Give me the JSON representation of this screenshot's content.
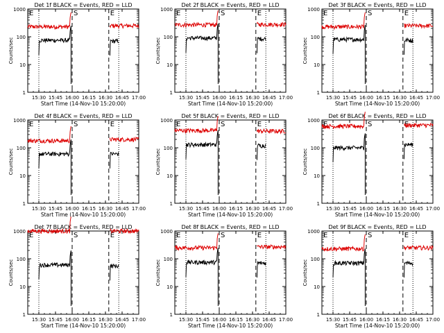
{
  "page": {
    "background": "#ffffff",
    "colors": {
      "events": "#000000",
      "lld": "#dd0000",
      "axes": "#000000"
    }
  },
  "chart_data": [
    {
      "type": "line",
      "title": "Det 1f BLACK = Events, RED = LLD",
      "xlabel": "Start Time (14-Nov-10 15:20:00)",
      "ylabel": "Counts/sec",
      "x_ticks": [
        "15:30",
        "15:45",
        "16:00",
        "16:15",
        "16:30",
        "16:45",
        "17:00"
      ],
      "y_ticks": [
        "1",
        "10",
        "100",
        "1000"
      ],
      "y_scale": "log",
      "ylim": [
        1,
        1000
      ],
      "xlim_minutes": [
        0,
        100
      ],
      "markers": [
        {
          "label": "E",
          "minute": 0,
          "style": "dotted"
        },
        {
          "label": "S",
          "minute": 40,
          "style": "dashed"
        },
        {
          "label": "E",
          "minute": 73,
          "style": "dashed"
        },
        {
          "minute": 10,
          "style": "dotted"
        },
        {
          "minute": 82,
          "style": "dotted"
        }
      ],
      "series": [
        {
          "color": "#dd0000",
          "segments": [
            {
              "start": 0,
              "end": 39,
              "level": 230
            },
            {
              "start": 74,
              "end": 100,
              "level": 250
            }
          ]
        },
        {
          "color": "#000000",
          "segments": [
            {
              "start": 10,
              "end": 39,
              "level": 75
            },
            {
              "start": 74,
              "end": 82,
              "level": 70
            }
          ]
        }
      ]
    },
    {
      "type": "line",
      "title": "Det 2f BLACK = Events, RED = LLD",
      "xlabel": "Start Time (14-Nov-10 15:20:00)",
      "ylabel": "Counts/sec",
      "x_ticks": [
        "15:30",
        "15:45",
        "16:00",
        "16:15",
        "16:30",
        "16:45",
        "17:00"
      ],
      "y_ticks": [
        "1",
        "10",
        "100",
        "1000"
      ],
      "y_scale": "log",
      "ylim": [
        1,
        1000
      ],
      "xlim_minutes": [
        0,
        100
      ],
      "markers": [
        {
          "label": "E",
          "minute": 0,
          "style": "dotted"
        },
        {
          "label": "S",
          "minute": 40,
          "style": "dashed"
        },
        {
          "label": "E",
          "minute": 73,
          "style": "dashed"
        },
        {
          "minute": 10,
          "style": "dotted"
        },
        {
          "minute": 82,
          "style": "dotted"
        }
      ],
      "series": [
        {
          "color": "#dd0000",
          "segments": [
            {
              "start": 0,
              "end": 39,
              "level": 270
            },
            {
              "start": 74,
              "end": 100,
              "level": 280
            }
          ]
        },
        {
          "color": "#000000",
          "segments": [
            {
              "start": 10,
              "end": 39,
              "level": 90
            },
            {
              "start": 74,
              "end": 82,
              "level": 85
            }
          ]
        }
      ]
    },
    {
      "type": "line",
      "title": "Det 3f BLACK = Events, RED = LLD",
      "xlabel": "Start Time (14-Nov-10 15:20:00)",
      "ylabel": "Counts/sec",
      "x_ticks": [
        "15:30",
        "15:45",
        "16:00",
        "16:15",
        "16:30",
        "16:45",
        "17:00"
      ],
      "y_ticks": [
        "1",
        "10",
        "100",
        "1000"
      ],
      "y_scale": "log",
      "ylim": [
        1,
        1000
      ],
      "xlim_minutes": [
        0,
        100
      ],
      "markers": [
        {
          "label": "E",
          "minute": 0,
          "style": "dotted"
        },
        {
          "label": "S",
          "minute": 40,
          "style": "dashed"
        },
        {
          "label": "E",
          "minute": 73,
          "style": "dashed"
        },
        {
          "minute": 10,
          "style": "dotted"
        },
        {
          "minute": 82,
          "style": "dotted"
        }
      ],
      "series": [
        {
          "color": "#dd0000",
          "segments": [
            {
              "start": 0,
              "end": 39,
              "level": 230
            },
            {
              "start": 74,
              "end": 100,
              "level": 250
            }
          ]
        },
        {
          "color": "#000000",
          "segments": [
            {
              "start": 10,
              "end": 39,
              "level": 80
            },
            {
              "start": 74,
              "end": 82,
              "level": 75
            }
          ]
        }
      ]
    },
    {
      "type": "line",
      "title": "Det 4f BLACK = Events, RED = LLD",
      "xlabel": "Start Time (14-Nov-10 15:20:00)",
      "ylabel": "Counts/sec",
      "x_ticks": [
        "15:30",
        "15:45",
        "16:00",
        "16:15",
        "16:30",
        "16:45",
        "17:00"
      ],
      "y_ticks": [
        "1",
        "10",
        "100",
        "1000"
      ],
      "y_scale": "log",
      "ylim": [
        1,
        1000
      ],
      "xlim_minutes": [
        0,
        100
      ],
      "markers": [
        {
          "label": "E",
          "minute": 0,
          "style": "dotted"
        },
        {
          "label": "S",
          "minute": 40,
          "style": "dashed"
        },
        {
          "label": "E",
          "minute": 73,
          "style": "dashed"
        },
        {
          "minute": 10,
          "style": "dotted"
        },
        {
          "minute": 82,
          "style": "dotted"
        }
      ],
      "series": [
        {
          "color": "#dd0000",
          "segments": [
            {
              "start": 0,
              "end": 39,
              "level": 180
            },
            {
              "start": 74,
              "end": 100,
              "level": 200
            }
          ]
        },
        {
          "color": "#000000",
          "segments": [
            {
              "start": 10,
              "end": 39,
              "level": 60
            },
            {
              "start": 74,
              "end": 82,
              "level": 60
            }
          ]
        }
      ]
    },
    {
      "type": "line",
      "title": "Det 5f BLACK = Events, RED = LLD",
      "xlabel": "Start Time (14-Nov-10 15:20:00)",
      "ylabel": "Counts/sec",
      "x_ticks": [
        "15:30",
        "15:45",
        "16:00",
        "16:15",
        "16:30",
        "16:45",
        "17:00"
      ],
      "y_ticks": [
        "1",
        "10",
        "100",
        "1000"
      ],
      "y_scale": "log",
      "ylim": [
        1,
        1000
      ],
      "xlim_minutes": [
        0,
        100
      ],
      "markers": [
        {
          "label": "E",
          "minute": 0,
          "style": "dotted"
        },
        {
          "label": "S",
          "minute": 40,
          "style": "dashed"
        },
        {
          "label": "E",
          "minute": 73,
          "style": "dashed"
        },
        {
          "minute": 10,
          "style": "dotted"
        },
        {
          "minute": 82,
          "style": "dotted"
        }
      ],
      "series": [
        {
          "color": "#dd0000",
          "segments": [
            {
              "start": 0,
              "end": 39,
              "level": 420
            },
            {
              "start": 74,
              "end": 100,
              "level": 400
            }
          ]
        },
        {
          "color": "#000000",
          "segments": [
            {
              "start": 10,
              "end": 39,
              "level": 130
            },
            {
              "start": 74,
              "end": 82,
              "level": 120
            }
          ]
        }
      ]
    },
    {
      "type": "line",
      "title": "Det 6f BLACK = Events, RED = LLD",
      "xlabel": "Start Time (14-Nov-10 15:20:00)",
      "ylabel": "Counts/sec",
      "x_ticks": [
        "15:30",
        "15:45",
        "16:00",
        "16:15",
        "16:30",
        "16:45",
        "17:00"
      ],
      "y_ticks": [
        "1",
        "10",
        "100",
        "1000"
      ],
      "y_scale": "log",
      "ylim": [
        1,
        1000
      ],
      "xlim_minutes": [
        0,
        100
      ],
      "markers": [
        {
          "label": "E",
          "minute": 0,
          "style": "dotted"
        },
        {
          "label": "S",
          "minute": 40,
          "style": "dashed"
        },
        {
          "label": "E",
          "minute": 73,
          "style": "dashed"
        },
        {
          "minute": 10,
          "style": "dotted"
        },
        {
          "minute": 82,
          "style": "dotted"
        }
      ],
      "series": [
        {
          "color": "#dd0000",
          "segments": [
            {
              "start": 0,
              "end": 39,
              "level": 600
            },
            {
              "start": 74,
              "end": 100,
              "level": 650
            }
          ]
        },
        {
          "color": "#000000",
          "segments": [
            {
              "start": 10,
              "end": 39,
              "level": 100
            },
            {
              "start": 74,
              "end": 82,
              "level": 130
            }
          ]
        }
      ]
    },
    {
      "type": "line",
      "title": "Det 7f BLACK = Events, RED = LLD",
      "xlabel": "Start Time (14-Nov-10 15:20:00)",
      "ylabel": "Counts/sec",
      "x_ticks": [
        "15:30",
        "15:45",
        "16:00",
        "16:15",
        "16:30",
        "16:45",
        "17:00"
      ],
      "y_ticks": [
        "1",
        "10",
        "100",
        "1000"
      ],
      "y_scale": "log",
      "ylim": [
        1,
        1000
      ],
      "xlim_minutes": [
        0,
        100
      ],
      "markers": [
        {
          "label": "E",
          "minute": 0,
          "style": "dotted"
        },
        {
          "label": "S",
          "minute": 40,
          "style": "dashed"
        },
        {
          "label": "E",
          "minute": 73,
          "style": "dashed"
        },
        {
          "minute": 10,
          "style": "dotted"
        },
        {
          "minute": 82,
          "style": "dotted"
        }
      ],
      "series": [
        {
          "color": "#dd0000",
          "segments": [
            {
              "start": 0,
              "end": 39,
              "level": 1000
            },
            {
              "start": 74,
              "end": 100,
              "level": 1000
            }
          ]
        },
        {
          "color": "#000000",
          "segments": [
            {
              "start": 10,
              "end": 39,
              "level": 60
            },
            {
              "start": 74,
              "end": 82,
              "level": 55
            }
          ]
        }
      ]
    },
    {
      "type": "line",
      "title": "Det 8f BLACK = Events, RED = LLD",
      "xlabel": "Start Time (14-Nov-10 15:20:00)",
      "ylabel": "Counts/sec",
      "x_ticks": [
        "15:30",
        "15:45",
        "16:00",
        "16:15",
        "16:30",
        "16:45",
        "17:00"
      ],
      "y_ticks": [
        "1",
        "10",
        "100",
        "1000"
      ],
      "y_scale": "log",
      "ylim": [
        1,
        1000
      ],
      "xlim_minutes": [
        0,
        100
      ],
      "markers": [
        {
          "label": "E",
          "minute": 0,
          "style": "dotted"
        },
        {
          "label": "S",
          "minute": 40,
          "style": "dashed"
        },
        {
          "label": "E",
          "minute": 73,
          "style": "dashed"
        },
        {
          "minute": 10,
          "style": "dotted"
        },
        {
          "minute": 82,
          "style": "dotted"
        }
      ],
      "series": [
        {
          "color": "#dd0000",
          "segments": [
            {
              "start": 0,
              "end": 39,
              "level": 250
            },
            {
              "start": 74,
              "end": 100,
              "level": 270
            }
          ]
        },
        {
          "color": "#000000",
          "segments": [
            {
              "start": 10,
              "end": 39,
              "level": 75
            },
            {
              "start": 74,
              "end": 82,
              "level": 70
            }
          ]
        }
      ]
    },
    {
      "type": "line",
      "title": "Det 9f BLACK = Events, RED = LLD",
      "xlabel": "Start Time (14-Nov-10 15:20:00)",
      "ylabel": "Counts/sec",
      "x_ticks": [
        "15:30",
        "15:45",
        "16:00",
        "16:15",
        "16:30",
        "16:45",
        "17:00"
      ],
      "y_ticks": [
        "1",
        "10",
        "100",
        "1000"
      ],
      "y_scale": "log",
      "ylim": [
        1,
        1000
      ],
      "xlim_minutes": [
        0,
        100
      ],
      "markers": [
        {
          "label": "E",
          "minute": 0,
          "style": "dotted"
        },
        {
          "label": "S",
          "minute": 40,
          "style": "dashed"
        },
        {
          "label": "E",
          "minute": 73,
          "style": "dashed"
        },
        {
          "minute": 10,
          "style": "dotted"
        },
        {
          "minute": 82,
          "style": "dotted"
        }
      ],
      "series": [
        {
          "color": "#dd0000",
          "segments": [
            {
              "start": 0,
              "end": 39,
              "level": 230
            },
            {
              "start": 74,
              "end": 100,
              "level": 250
            }
          ]
        },
        {
          "color": "#000000",
          "segments": [
            {
              "start": 10,
              "end": 39,
              "level": 70
            },
            {
              "start": 74,
              "end": 82,
              "level": 70
            }
          ]
        }
      ]
    }
  ]
}
